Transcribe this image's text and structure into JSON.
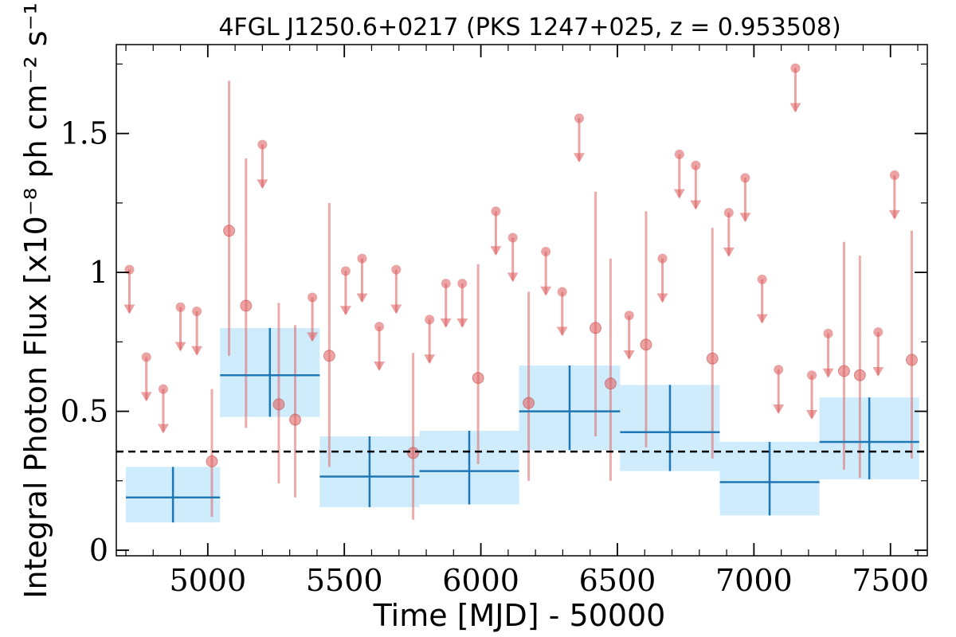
{
  "chart_data": {
    "type": "scatter",
    "title": "4FGL J1250.6+0217 (PKS 1247+025, z = 0.953508)",
    "xlabel": "Time [MJD] - 50000",
    "ylabel": "Integral Photon Flux [x10⁻⁸ ph cm⁻² s⁻¹]",
    "xlim": [
      4665,
      7635
    ],
    "ylim": [
      -0.02,
      1.82
    ],
    "xticks": [
      5000,
      5500,
      6000,
      6500,
      7000,
      7500
    ],
    "xtick_labels": [
      "5000",
      "5500",
      "6000",
      "6500",
      "7000",
      "7500"
    ],
    "yticks": [
      0,
      0.5,
      1,
      1.5
    ],
    "ytick_labels": [
      "0",
      "0.5",
      "1",
      "1.5"
    ],
    "grid": false,
    "reference_line": {
      "y": 0.355,
      "style": "dashed",
      "color": "#000000"
    },
    "colors": {
      "points": "#e06666",
      "bins": "#1f77b4",
      "bin_fill": "#bfe6fb"
    },
    "series": [
      {
        "values": [
          {
            "x": 5015,
            "y": 0.32,
            "ylo": 0.12,
            "yhi": 0.58
          },
          {
            "x": 5078,
            "y": 1.15,
            "ylo": 0.7,
            "yhi": 1.69
          },
          {
            "x": 5140,
            "y": 0.88,
            "ylo": 0.44,
            "yhi": 1.41
          },
          {
            "x": 5260,
            "y": 0.525,
            "ylo": 0.24,
            "yhi": 0.89
          },
          {
            "x": 5320,
            "y": 0.47,
            "ylo": 0.19,
            "yhi": 0.81
          },
          {
            "x": 5445,
            "y": 0.7,
            "ylo": 0.3,
            "yhi": 1.25
          },
          {
            "x": 5752,
            "y": 0.35,
            "ylo": 0.11,
            "yhi": 0.71
          },
          {
            "x": 5990,
            "y": 0.62,
            "ylo": 0.31,
            "yhi": 1.03
          },
          {
            "x": 6175,
            "y": 0.53,
            "ylo": 0.25,
            "yhi": 0.93
          },
          {
            "x": 6420,
            "y": 0.8,
            "ylo": 0.41,
            "yhi": 1.29
          },
          {
            "x": 6475,
            "y": 0.6,
            "ylo": 0.25,
            "yhi": 1.05
          },
          {
            "x": 6605,
            "y": 0.74,
            "ylo": 0.37,
            "yhi": 1.22
          },
          {
            "x": 6848,
            "y": 0.69,
            "ylo": 0.33,
            "yhi": 1.16
          },
          {
            "x": 7330,
            "y": 0.645,
            "ylo": 0.29,
            "yhi": 1.11
          },
          {
            "x": 7388,
            "y": 0.63,
            "ylo": 0.26,
            "yhi": 1.06
          },
          {
            "x": 7578,
            "y": 0.685,
            "ylo": 0.33,
            "yhi": 1.15
          }
        ]
      },
      {
        "upper_limits": true,
        "values": [
          {
            "x": 4713,
            "y": 1.01
          },
          {
            "x": 4775,
            "y": 0.695
          },
          {
            "x": 4837,
            "y": 0.58
          },
          {
            "x": 4900,
            "y": 0.875
          },
          {
            "x": 4960,
            "y": 0.86
          },
          {
            "x": 5200,
            "y": 1.46
          },
          {
            "x": 5383,
            "y": 0.91
          },
          {
            "x": 5505,
            "y": 1.005
          },
          {
            "x": 5565,
            "y": 1.05
          },
          {
            "x": 5628,
            "y": 0.805
          },
          {
            "x": 5690,
            "y": 1.01
          },
          {
            "x": 5812,
            "y": 0.83
          },
          {
            "x": 5872,
            "y": 0.96
          },
          {
            "x": 5932,
            "y": 0.96
          },
          {
            "x": 6055,
            "y": 1.22
          },
          {
            "x": 6117,
            "y": 1.125
          },
          {
            "x": 6238,
            "y": 1.075
          },
          {
            "x": 6298,
            "y": 0.93
          },
          {
            "x": 6360,
            "y": 1.555
          },
          {
            "x": 6543,
            "y": 0.845
          },
          {
            "x": 6665,
            "y": 1.05
          },
          {
            "x": 6727,
            "y": 1.425
          },
          {
            "x": 6787,
            "y": 1.385
          },
          {
            "x": 6908,
            "y": 1.215
          },
          {
            "x": 6968,
            "y": 1.34
          },
          {
            "x": 7030,
            "y": 0.975
          },
          {
            "x": 7090,
            "y": 0.65
          },
          {
            "x": 7152,
            "y": 1.735
          },
          {
            "x": 7212,
            "y": 0.63
          },
          {
            "x": 7272,
            "y": 0.78
          },
          {
            "x": 7455,
            "y": 0.785
          },
          {
            "x": 7515,
            "y": 1.35
          }
        ]
      },
      {
        "values": [
          {
            "x0": 4700,
            "x1": 5045,
            "y": 0.19,
            "ylo": 0.1,
            "yhi": 0.3
          },
          {
            "x0": 5045,
            "x1": 5410,
            "y": 0.63,
            "ylo": 0.48,
            "yhi": 0.8
          },
          {
            "x0": 5410,
            "x1": 5775,
            "y": 0.265,
            "ylo": 0.155,
            "yhi": 0.41
          },
          {
            "x0": 5775,
            "x1": 6140,
            "y": 0.285,
            "ylo": 0.165,
            "yhi": 0.43
          },
          {
            "x0": 6140,
            "x1": 6510,
            "y": 0.5,
            "ylo": 0.36,
            "yhi": 0.665
          },
          {
            "x0": 6510,
            "x1": 6875,
            "y": 0.425,
            "ylo": 0.285,
            "yhi": 0.595
          },
          {
            "x0": 6875,
            "x1": 7240,
            "y": 0.245,
            "ylo": 0.125,
            "yhi": 0.39
          },
          {
            "x0": 7240,
            "x1": 7605,
            "y": 0.39,
            "ylo": 0.255,
            "yhi": 0.55
          }
        ]
      }
    ]
  }
}
